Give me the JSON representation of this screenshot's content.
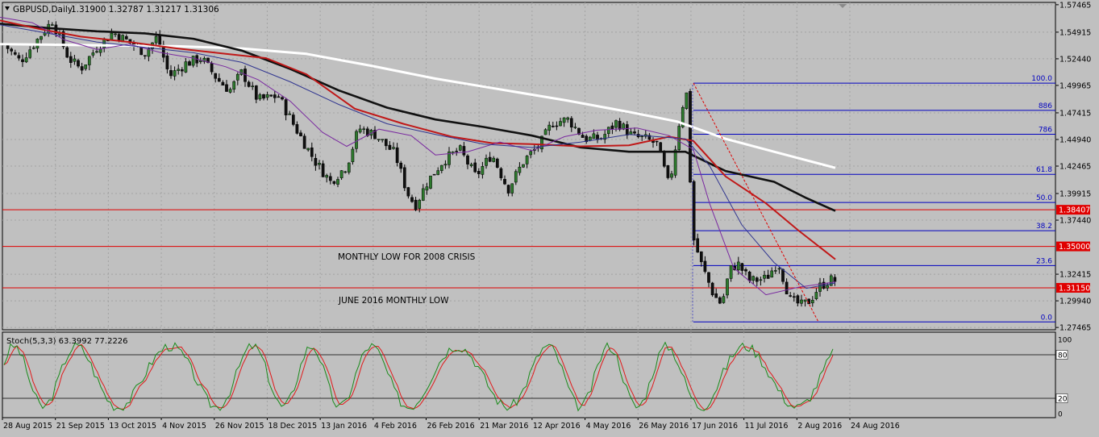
{
  "header": {
    "symbol_label": "GBPUSD,Daily",
    "ohlc_label": "1.31900 1.32787 1.31217 1.31306"
  },
  "stoch_label": "Stoch(5,3,3) 63.3992 77.2226",
  "annotations": {
    "monthly_low": "MONTHLY LOW FOR 2008 CRISIS",
    "june_low": "JUNE 2016 MONTHLY  LOW"
  },
  "colors": {
    "background": "#c0c0c0",
    "grid": "#a3a3a3",
    "candle_bull": "#2a5a2a",
    "candle_bear": "#0f1f0f",
    "ma_white": "#ffffff",
    "ma_black": "#111111",
    "ma_red": "#c01818",
    "ma_purple": "#7a2aa0",
    "ma_blue": "#303590",
    "level_red": "#e00000",
    "fib_blue": "#0000c0",
    "stoch_main": "#1a8a1a",
    "stoch_signal": "#e01a1a"
  },
  "chart_data": [
    {
      "type": "candlestick",
      "title": "GBPUSD,Daily",
      "x_tick_labels": [
        "28 Aug 2015",
        "21 Sep 2015",
        "13 Oct 2015",
        "4 Nov 2015",
        "26 Nov 2015",
        "18 Dec 2015",
        "13 Jan 2016",
        "4 Feb 2016",
        "26 Feb 2016",
        "21 Mar 2016",
        "12 Apr 2016",
        "4 May 2016",
        "26 May 2016",
        "17 Jun 2016",
        "11 Jul 2016",
        "2 Aug 2016",
        "24 Aug 2016"
      ],
      "y_tick_labels": [
        "1.57465",
        "1.54915",
        "1.52440",
        "1.49965",
        "1.47415",
        "1.44940",
        "1.42465",
        "1.39915",
        "1.37440",
        "1.32415",
        "1.29940",
        "1.27465"
      ],
      "ylim": [
        1.2725,
        1.5768
      ],
      "grid": true,
      "price_levels": [
        {
          "value": 1.38407,
          "label": "1.38407"
        },
        {
          "value": 1.35,
          "label": "1.35000"
        },
        {
          "value": 1.3115,
          "label": "1.31150"
        }
      ],
      "fibonacci": {
        "high": 1.5018,
        "low": 1.2798,
        "levels": [
          {
            "ratio": 1.0,
            "label": "100.0"
          },
          {
            "ratio": 0.886,
            "label": "886"
          },
          {
            "ratio": 0.786,
            "label": "786"
          },
          {
            "ratio": 0.618,
            "label": "61.8"
          },
          {
            "ratio": 0.5,
            "label": "50.0"
          },
          {
            "ratio": 0.382,
            "label": "38.2"
          },
          {
            "ratio": 0.236,
            "label": "23.6"
          },
          {
            "ratio": 0.0,
            "label": "0.0"
          }
        ]
      },
      "moving_averages": [
        {
          "color": "#ffffff",
          "points": [
            [
              0,
              1.538
            ],
            [
              60,
              1.5375
            ],
            [
              140,
              1.5368
            ],
            [
              220,
              1.536
            ],
            [
              300,
              1.534
            ],
            [
              380,
              1.529
            ],
            [
              460,
              1.518
            ],
            [
              540,
              1.506
            ],
            [
              620,
              1.496
            ],
            [
              700,
              1.486
            ],
            [
              780,
              1.475
            ],
            [
              840,
              1.466
            ],
            [
              900,
              1.45
            ],
            [
              960,
              1.438
            ],
            [
              1036,
              1.423
            ]
          ]
        },
        {
          "color": "#111111",
          "points": [
            [
              0,
              1.557
            ],
            [
              60,
              1.553
            ],
            [
              120,
              1.55
            ],
            [
              180,
              1.548
            ],
            [
              240,
              1.543
            ],
            [
              300,
              1.532
            ],
            [
              360,
              1.515
            ],
            [
              420,
              1.495
            ],
            [
              480,
              1.479
            ],
            [
              540,
              1.468
            ],
            [
              600,
              1.461
            ],
            [
              660,
              1.453
            ],
            [
              720,
              1.442
            ],
            [
              780,
              1.438
            ],
            [
              850,
              1.438
            ],
            [
              900,
              1.42
            ],
            [
              960,
              1.41
            ],
            [
              1000,
              1.395
            ],
            [
              1036,
              1.383
            ]
          ]
        },
        {
          "color": "#c01818",
          "points": [
            [
              0,
              1.56
            ],
            [
              50,
              1.552
            ],
            [
              100,
              1.545
            ],
            [
              160,
              1.54
            ],
            [
              220,
              1.534
            ],
            [
              280,
              1.529
            ],
            [
              330,
              1.525
            ],
            [
              380,
              1.51
            ],
            [
              440,
              1.478
            ],
            [
              500,
              1.464
            ],
            [
              560,
              1.452
            ],
            [
              610,
              1.446
            ],
            [
              660,
              1.445
            ],
            [
              720,
              1.443
            ],
            [
              780,
              1.444
            ],
            [
              830,
              1.452
            ],
            [
              860,
              1.448
            ],
            [
              900,
              1.415
            ],
            [
              950,
              1.39
            ],
            [
              990,
              1.365
            ],
            [
              1036,
              1.338
            ]
          ]
        },
        {
          "color": "#7a2aa0",
          "points": [
            [
              0,
              1.563
            ],
            [
              40,
              1.558
            ],
            [
              80,
              1.542
            ],
            [
              120,
              1.533
            ],
            [
              160,
              1.538
            ],
            [
              200,
              1.53
            ],
            [
              240,
              1.525
            ],
            [
              280,
              1.517
            ],
            [
              320,
              1.505
            ],
            [
              360,
              1.485
            ],
            [
              400,
              1.456
            ],
            [
              430,
              1.443
            ],
            [
              470,
              1.459
            ],
            [
              510,
              1.453
            ],
            [
              540,
              1.435
            ],
            [
              580,
              1.438
            ],
            [
              620,
              1.447
            ],
            [
              660,
              1.439
            ],
            [
              700,
              1.452
            ],
            [
              740,
              1.458
            ],
            [
              790,
              1.46
            ],
            [
              830,
              1.453
            ],
            [
              860,
              1.44
            ],
            [
              880,
              1.39
            ],
            [
              910,
              1.33
            ],
            [
              950,
              1.305
            ],
            [
              990,
              1.312
            ],
            [
              1036,
              1.317
            ]
          ]
        },
        {
          "color": "#303590",
          "points": [
            [
              0,
              1.556
            ],
            [
              60,
              1.548
            ],
            [
              120,
              1.54
            ],
            [
              180,
              1.535
            ],
            [
              240,
              1.53
            ],
            [
              300,
              1.521
            ],
            [
              360,
              1.503
            ],
            [
              420,
              1.482
            ],
            [
              480,
              1.464
            ],
            [
              540,
              1.454
            ],
            [
              600,
              1.445
            ],
            [
              660,
              1.442
            ],
            [
              720,
              1.447
            ],
            [
              780,
              1.454
            ],
            [
              850,
              1.45
            ],
            [
              880,
              1.425
            ],
            [
              920,
              1.37
            ],
            [
              960,
              1.335
            ],
            [
              1000,
              1.311
            ],
            [
              1036,
              1.316
            ]
          ]
        }
      ]
    },
    {
      "type": "line",
      "title": "Stoch(5,3,3) 63.3992 77.2226",
      "ylim": [
        0,
        100
      ],
      "y_tick_labels": [
        "100",
        "80",
        "20",
        "0"
      ],
      "levels": [
        80,
        20
      ],
      "main": {
        "value": 63.3992
      },
      "signal": {
        "value": 77.2226
      }
    }
  ]
}
